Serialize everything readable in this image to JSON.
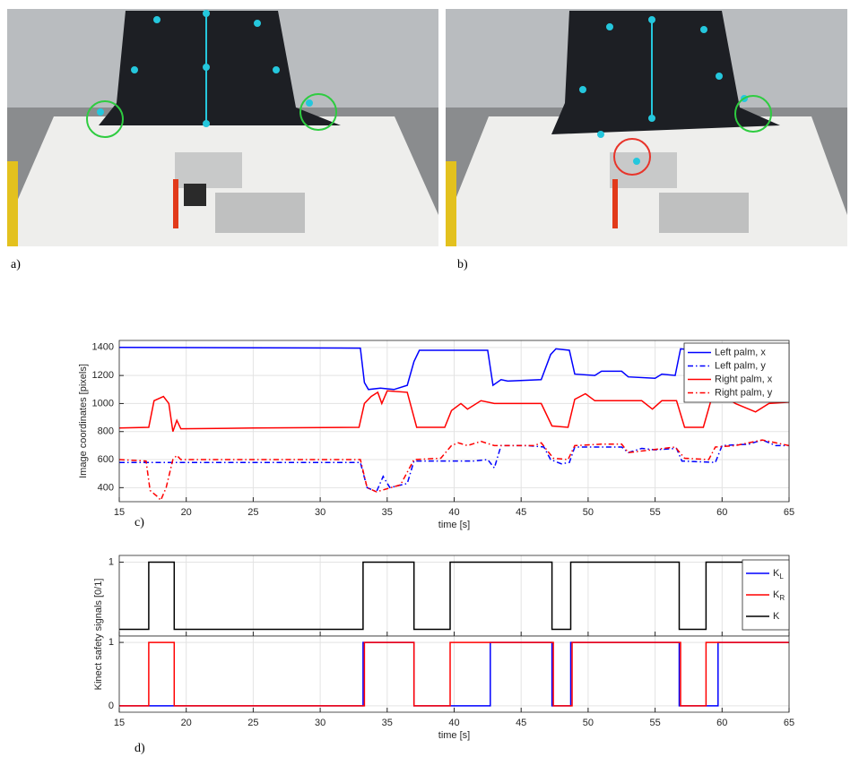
{
  "panel_labels": [
    "a)",
    "b)",
    "c)",
    "d)"
  ],
  "chart_data": [
    {
      "type": "line",
      "ylabel": "Image coordinates [pixels]",
      "xlabel": "time [s]",
      "xlim": [
        15,
        65
      ],
      "xticks": [
        15,
        20,
        25,
        30,
        35,
        40,
        45,
        50,
        55,
        60,
        65
      ],
      "ylim": [
        300,
        1450
      ],
      "yticks": [
        400,
        600,
        800,
        1000,
        1200,
        1400
      ],
      "grid": true,
      "legend": "upper right",
      "series": [
        {
          "name": "Left palm, x",
          "color": "#0000ff",
          "dash": "solid",
          "x": [
            15,
            33,
            33.3,
            33.6,
            34.5,
            35.5,
            36.5,
            37,
            37.4,
            42.5,
            42.9,
            43.5,
            44,
            46.5,
            47.2,
            47.6,
            48.6,
            49,
            50.5,
            51,
            52.5,
            53,
            55,
            55.5,
            56.5,
            56.9,
            58,
            59.5,
            60,
            62,
            63,
            64,
            65
          ],
          "values": [
            1400,
            1395,
            1150,
            1100,
            1110,
            1100,
            1130,
            1300,
            1380,
            1380,
            1130,
            1170,
            1160,
            1170,
            1350,
            1390,
            1380,
            1210,
            1200,
            1230,
            1230,
            1190,
            1180,
            1210,
            1200,
            1390,
            1380,
            1370,
            1390,
            1380,
            1300,
            1220,
            1180
          ]
        },
        {
          "name": "Left palm, y",
          "color": "#0000ff",
          "dash": "dashdot",
          "x": [
            15,
            33,
            33.5,
            34.2,
            34.7,
            35.2,
            36.5,
            37,
            41.5,
            42.5,
            43,
            43.5,
            45.5,
            46.7,
            47.2,
            48,
            48.6,
            49,
            52.5,
            53,
            54,
            55,
            56.6,
            57,
            59.5,
            60,
            62,
            63,
            64,
            65
          ],
          "values": [
            580,
            580,
            400,
            370,
            480,
            400,
            430,
            590,
            590,
            600,
            540,
            700,
            700,
            690,
            600,
            570,
            580,
            690,
            690,
            650,
            680,
            670,
            680,
            590,
            580,
            700,
            710,
            740,
            700,
            700
          ]
        },
        {
          "name": "Right palm, x",
          "color": "#ff0000",
          "dash": "solid",
          "x": [
            15,
            17.2,
            17.6,
            18.3,
            18.7,
            19,
            19.3,
            19.6,
            25,
            32.9,
            33.3,
            33.8,
            34.3,
            34.6,
            35,
            36.5,
            37.2,
            39.3,
            39.8,
            40.5,
            41,
            42,
            43,
            46.5,
            47.3,
            48.5,
            49,
            49.8,
            50.5,
            54,
            54.8,
            55.5,
            56.6,
            57.2,
            58.6,
            59.2,
            60,
            61,
            62.5,
            63.5,
            65
          ],
          "values": [
            825,
            830,
            1020,
            1050,
            1000,
            800,
            880,
            820,
            825,
            830,
            1000,
            1050,
            1080,
            1000,
            1090,
            1080,
            830,
            830,
            950,
            1000,
            960,
            1020,
            1000,
            1000,
            840,
            830,
            1030,
            1070,
            1020,
            1020,
            960,
            1020,
            1020,
            830,
            830,
            1030,
            1060,
            1000,
            940,
            1000,
            1010
          ]
        },
        {
          "name": "Right palm, y",
          "color": "#ff0000",
          "dash": "dashdot",
          "x": [
            15,
            17,
            17.3,
            17.8,
            18.1,
            18.5,
            19,
            19.3,
            19.6,
            33,
            33.5,
            34.2,
            36,
            37,
            39,
            39.8,
            40.3,
            41,
            42,
            43,
            46,
            46.5,
            47.4,
            48.5,
            49,
            51,
            52.5,
            53,
            56.5,
            57.2,
            59,
            59.5,
            61,
            63,
            65
          ],
          "values": [
            600,
            590,
            380,
            340,
            310,
            400,
            600,
            630,
            600,
            600,
            400,
            370,
            420,
            600,
            610,
            700,
            720,
            700,
            730,
            700,
            700,
            720,
            610,
            600,
            700,
            710,
            710,
            650,
            690,
            610,
            600,
            690,
            700,
            740,
            700
          ]
        }
      ]
    },
    {
      "type": "step",
      "ylim": [
        -0.1,
        1.1
      ],
      "yticks": [
        1
      ],
      "grid": true,
      "series": [
        {
          "name": "K",
          "color": "#000000",
          "x": [
            15,
            17.2,
            17.2,
            19.1,
            19.1,
            33.2,
            33.2,
            37.0,
            37.0,
            39.7,
            39.7,
            47.3,
            47.3,
            48.7,
            48.7,
            56.8,
            56.8,
            58.8,
            58.8,
            65
          ],
          "values": [
            0,
            0,
            1,
            1,
            0,
            0,
            1,
            1,
            0,
            0,
            1,
            1,
            0,
            0,
            1,
            1,
            0,
            0,
            1,
            1
          ]
        }
      ]
    },
    {
      "type": "step",
      "ylabel": "Kinect safety signals [0/1]",
      "xlabel": "time [s]",
      "xlim": [
        15,
        65
      ],
      "xticks": [
        15,
        20,
        25,
        30,
        35,
        40,
        45,
        50,
        55,
        60,
        65
      ],
      "ylim": [
        -0.1,
        1.1
      ],
      "yticks": [
        0,
        1
      ],
      "grid": true,
      "legend": "upper right",
      "series": [
        {
          "name": "K_L",
          "color": "#0000ff",
          "x": [
            15,
            33.2,
            33.2,
            37.0,
            37.0,
            42.7,
            42.7,
            47.3,
            47.3,
            48.7,
            48.7,
            56.8,
            56.8,
            59.7,
            59.7,
            65
          ],
          "values": [
            0,
            0,
            1,
            1,
            0,
            0,
            1,
            1,
            0,
            0,
            1,
            1,
            0,
            0,
            1,
            1
          ]
        },
        {
          "name": "K_R",
          "color": "#ff0000",
          "x": [
            15,
            17.2,
            17.2,
            19.1,
            19.1,
            33.3,
            33.3,
            37.0,
            37.0,
            39.7,
            39.7,
            47.4,
            47.4,
            48.8,
            48.8,
            56.9,
            56.9,
            58.8,
            58.8,
            65
          ],
          "values": [
            0,
            0,
            1,
            1,
            0,
            0,
            1,
            1,
            0,
            0,
            1,
            1,
            0,
            0,
            1,
            1,
            0,
            0,
            1,
            1
          ]
        }
      ]
    }
  ]
}
